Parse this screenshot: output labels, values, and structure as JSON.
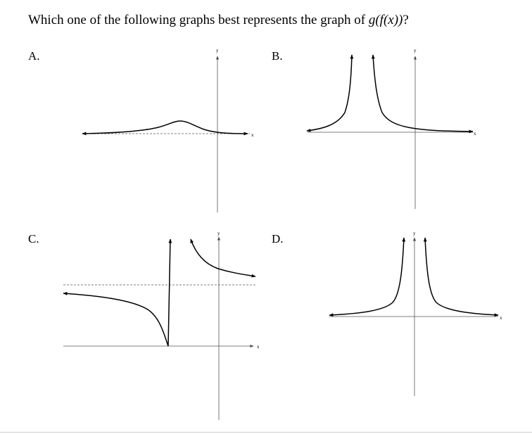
{
  "question": {
    "prefix": "Which one of the following graphs best represents the graph of ",
    "math": "g(f(x))",
    "suffix": "?"
  },
  "options": {
    "a": "A.",
    "b": "B.",
    "c": "C.",
    "d": "D."
  },
  "axes": {
    "x_label": "x",
    "y_label": "y"
  }
}
